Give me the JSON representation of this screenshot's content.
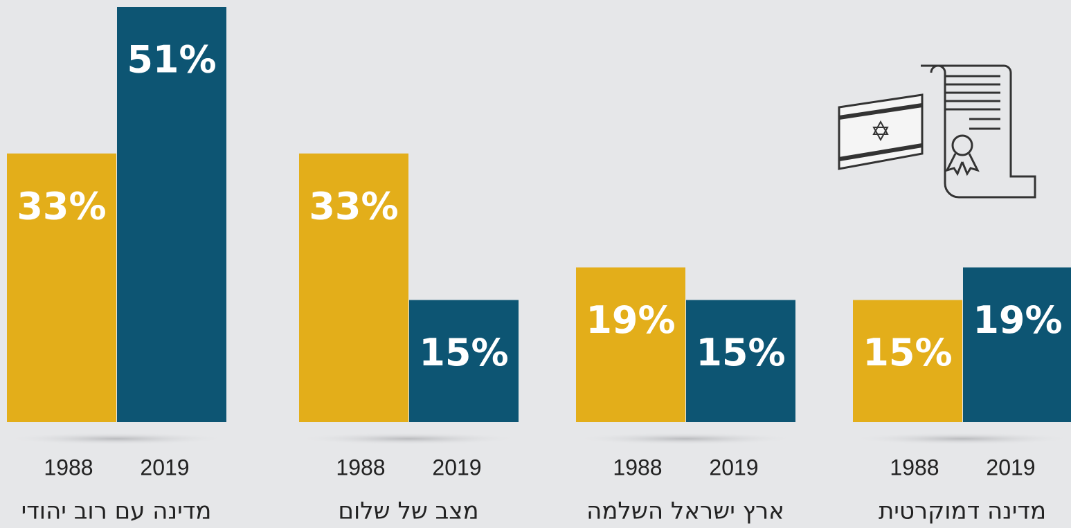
{
  "chart_data": {
    "type": "bar",
    "categories": [
      "מדינה עם רוב יהודי",
      "מצב של שלום",
      "ארץ ישראל השלמה",
      "מדינה דמוקרטית"
    ],
    "series": [
      {
        "name": "1988",
        "color": "#e3ae1a",
        "values": [
          33,
          33,
          19,
          15
        ],
        "value_labels": [
          "33%",
          "33%",
          "19%",
          "15%"
        ]
      },
      {
        "name": "2019",
        "color": "#0d5573",
        "values": [
          51,
          15,
          15,
          19
        ],
        "value_labels": [
          "51%",
          "15%",
          "15%",
          "19%"
        ]
      }
    ]
  }
}
